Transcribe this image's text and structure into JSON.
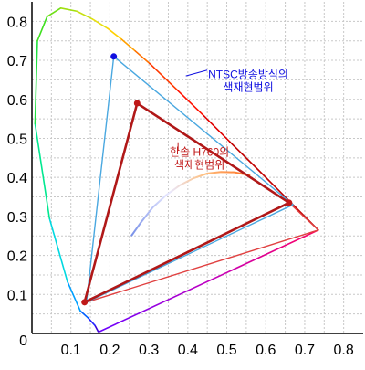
{
  "chart_data": {
    "type": "line",
    "title": "",
    "xlabel": "",
    "ylabel": "",
    "xlim": [
      0,
      0.85
    ],
    "ylim": [
      0,
      0.85
    ],
    "x_ticks": [
      "0.1",
      "0.2",
      "0.3",
      "0.4",
      "0.5",
      "0.6",
      "0.7",
      "0.8"
    ],
    "x_tick_values": [
      0.1,
      0.2,
      0.3,
      0.4,
      0.5,
      0.6,
      0.7,
      0.8
    ],
    "y_ticks": [
      "0",
      "0.1",
      "0.2",
      "0.3",
      "0.4",
      "0.5",
      "0.6",
      "0.7",
      "0.8"
    ],
    "y_tick_values": [
      0,
      0.1,
      0.2,
      0.3,
      0.4,
      0.5,
      0.6,
      0.7,
      0.8
    ],
    "grid": true,
    "spectral_locus": {
      "x": [
        0.174,
        0.17,
        0.162,
        0.144,
        0.124,
        0.091,
        0.045,
        0.008,
        0.014,
        0.039,
        0.074,
        0.115,
        0.155,
        0.194,
        0.23,
        0.265,
        0.302,
        0.373,
        0.441,
        0.508,
        0.575,
        0.627,
        0.665,
        0.692,
        0.735
      ],
      "y": [
        0.005,
        0.005,
        0.02,
        0.04,
        0.058,
        0.133,
        0.295,
        0.538,
        0.75,
        0.812,
        0.834,
        0.826,
        0.806,
        0.782,
        0.754,
        0.724,
        0.692,
        0.624,
        0.558,
        0.491,
        0.425,
        0.373,
        0.335,
        0.308,
        0.265
      ],
      "wavelength_colors": [
        "#4b0082",
        "#3b00d8",
        "#2424ff",
        "#0060ff",
        "#00a0ff",
        "#00d8e0",
        "#00e890",
        "#20e040",
        "#40e020",
        "#70e018",
        "#a0e010",
        "#c8e010",
        "#e8e010",
        "#ffd000",
        "#ffa000",
        "#ff7000",
        "#ff3800",
        "#ff1000",
        "#e00000",
        "#c00000"
      ]
    },
    "purple_line": {
      "x1": 0.174,
      "y1": 0.005,
      "x2": 0.735,
      "y2": 0.265
    },
    "planckian_locus": {
      "x": [
        0.255,
        0.28,
        0.31,
        0.345,
        0.38,
        0.415,
        0.45,
        0.485,
        0.52,
        0.56
      ],
      "y": [
        0.25,
        0.285,
        0.323,
        0.355,
        0.38,
        0.398,
        0.41,
        0.414,
        0.413,
        0.405
      ]
    },
    "series": [
      {
        "name": "NTSC방송방식의 색재현범위",
        "color": "#4aa8e0",
        "vertex_color": "#1010e0",
        "points": [
          [
            0.67,
            0.33
          ],
          [
            0.21,
            0.71
          ],
          [
            0.14,
            0.08
          ]
        ]
      },
      {
        "name": "한솔 H760의 색재현범위",
        "color": "#b01818",
        "vertex_color": "#c01818",
        "points": [
          [
            0.66,
            0.335
          ],
          [
            0.27,
            0.59
          ],
          [
            0.135,
            0.08
          ]
        ]
      },
      {
        "name": "",
        "color": "#e04040",
        "points": [
          [
            0.66,
            0.335
          ],
          [
            0.735,
            0.265
          ],
          [
            0.14,
            0.08
          ]
        ]
      }
    ],
    "annotations": [
      {
        "lines": [
          "NTSC방송방식의",
          "색재현범위"
        ],
        "color": "#1010e0",
        "x": 0.555,
        "y": 0.655,
        "pointer": [
          [
            0.45,
            0.675
          ],
          [
            0.395,
            0.66
          ]
        ]
      },
      {
        "lines": [
          "한솔 H760의",
          "색재현범위"
        ],
        "color": "#c01818",
        "x": 0.43,
        "y": 0.455,
        "pointer": [
          [
            0.375,
            0.49
          ],
          [
            0.375,
            0.47
          ]
        ]
      }
    ]
  }
}
